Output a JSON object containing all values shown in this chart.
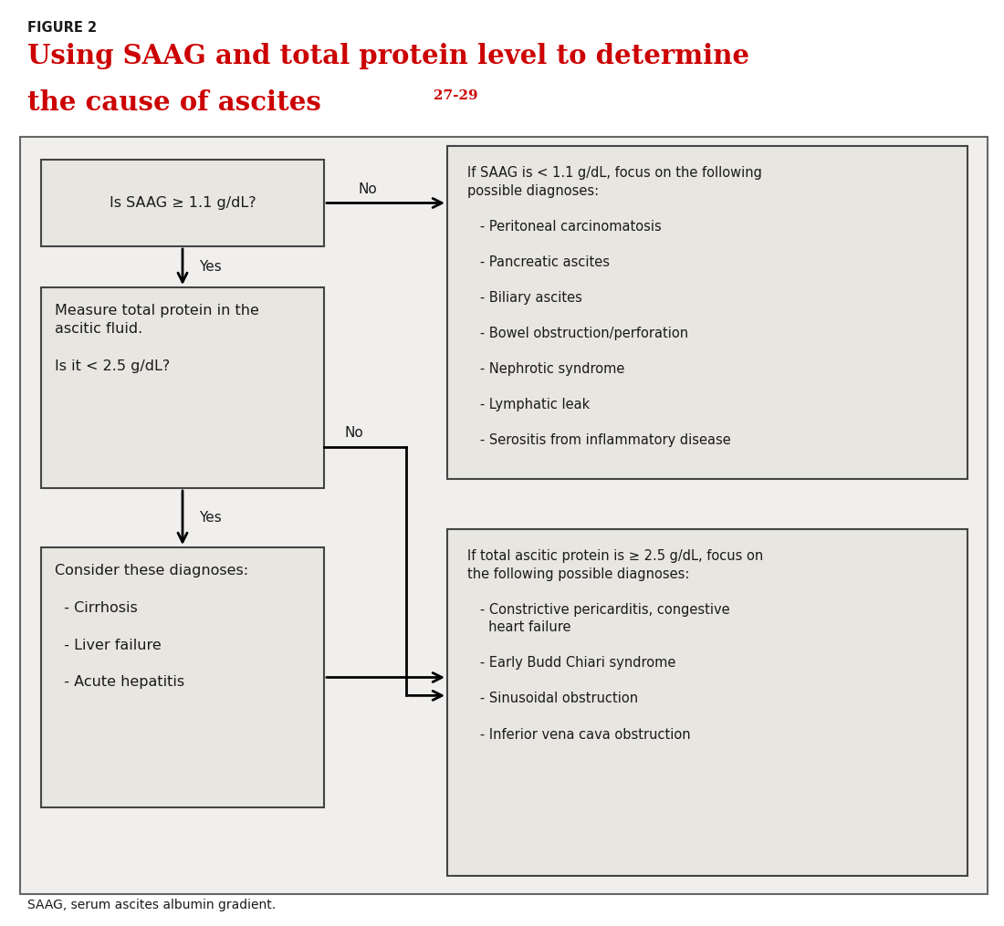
{
  "fig_label": "FIGURE 2",
  "title_line1": "Using SAAG and total protein level to determine",
  "title_line2_main": "the cause of ascites",
  "title_superscript": "27-29",
  "fig_label_color": "#1a1a1a",
  "title_color": "#cc0000",
  "background_color": "#ffffff",
  "diagram_bg": "#f0efed",
  "box_bg": "#e8e6e1",
  "box_border": "#444444",
  "diagram_border": "#666666",
  "text_color": "#1a1a1a",
  "box1_text": "Is SAAG ≥ 1.1 g/dL?",
  "box2_line1": "Measure total protein in the",
  "box2_line2": "ascitic fluid.",
  "box2_line3": "Is it < 2.5 g/dL?",
  "box3_lines": [
    "Consider these diagnoses:",
    "",
    "  - Cirrhosis",
    "",
    "  - Liver failure",
    "",
    "  - Acute hepatitis"
  ],
  "box4_lines": [
    "If SAAG is < 1.1 g/dL, focus on the following",
    "possible diagnoses:",
    "",
    "   - Peritoneal carcinomatosis",
    "",
    "   - Pancreatic ascites",
    "",
    "   - Biliary ascites",
    "",
    "   - Bowel obstruction/perforation",
    "",
    "   - Nephrotic syndrome",
    "",
    "   - Lymphatic leak",
    "",
    "   - Serositis from inflammatory disease"
  ],
  "box5_lines": [
    "If total ascitic protein is ≥ 2.5 g/dL, focus on",
    "the following possible diagnoses:",
    "",
    "   - Constrictive pericarditis, congestive",
    "     heart failure",
    "",
    "   - Early Budd Chiari syndrome",
    "",
    "   - Sinusoidal obstruction",
    "",
    "   - Inferior vena cava obstruction"
  ],
  "footnote": "SAAG, serum ascites albumin gradient.",
  "label_no1": "No",
  "label_yes1": "Yes",
  "label_no2": "No",
  "label_yes2": "Yes"
}
